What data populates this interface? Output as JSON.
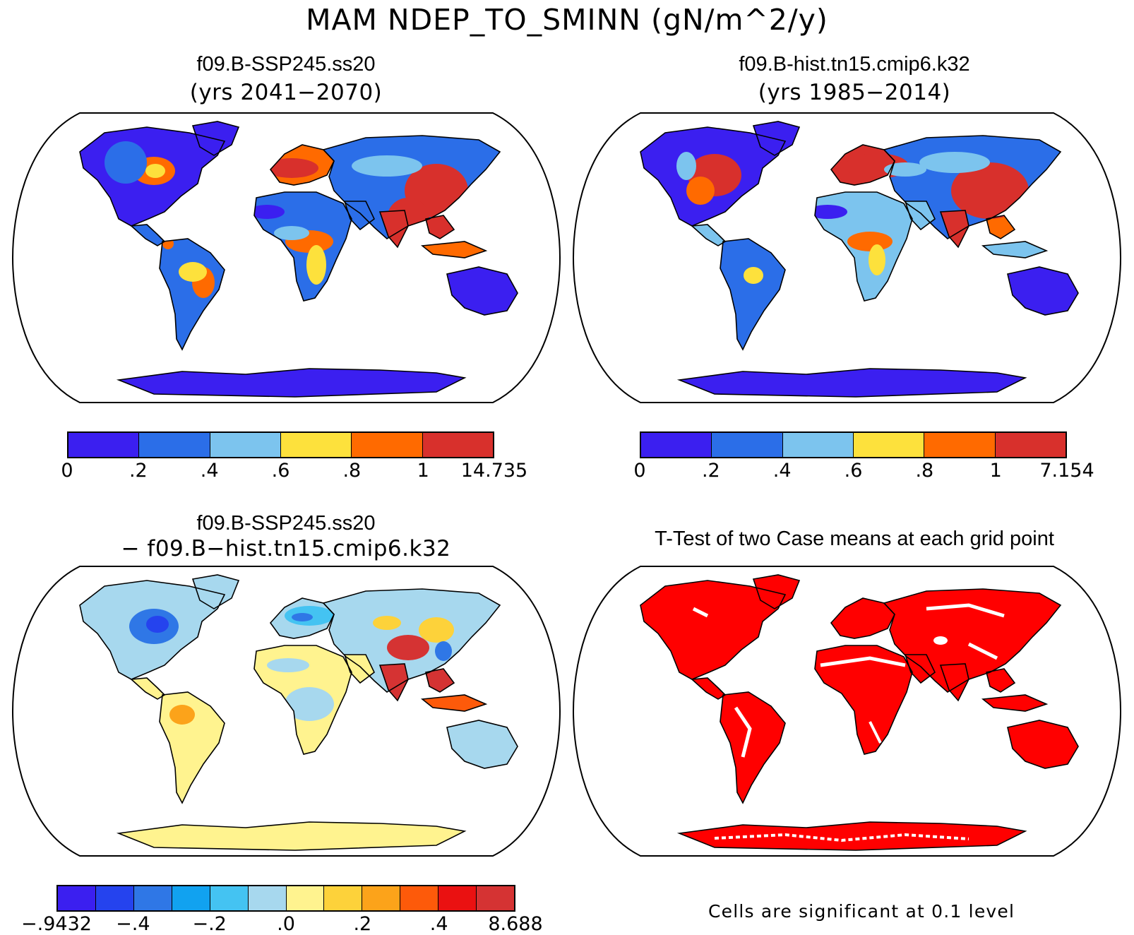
{
  "main_title": "MAM NDEP_TO_SMINN (gN/m^2/y)",
  "panels": {
    "top_left": {
      "title": "f09.B-SSP245.ss20",
      "subtitle": "(yrs 2041−2070)"
    },
    "top_right": {
      "title": "f09.B-hist.tn15.cmip6.k32",
      "subtitle": "(yrs 1985−2014)"
    },
    "bottom_left": {
      "title": "f09.B-SSP245.ss20",
      "subtitle": "− f09.B−hist.tn15.cmip6.k32"
    },
    "bottom_right": {
      "title": "T-Test of two Case means at each grid point",
      "note": "Cells are significant at 0.1 level"
    }
  },
  "colorbars": {
    "top_left": {
      "labels": [
        "0",
        ".2",
        ".4",
        ".6",
        ".8",
        "1",
        "14.735"
      ],
      "colors": [
        "#3b1ff0",
        "#2b6ee8",
        "#7cc4ee",
        "#fde13c",
        "#ff6a00",
        "#d8302c"
      ]
    },
    "top_right": {
      "labels": [
        "0",
        ".2",
        ".4",
        ".6",
        ".8",
        "1",
        "7.154"
      ],
      "colors": [
        "#3b1ff0",
        "#2b6ee8",
        "#7cc4ee",
        "#fde13c",
        "#ff6a00",
        "#d8302c"
      ]
    },
    "bottom_left": {
      "labels": [
        "−.9432",
        "−.4",
        "−.2",
        ".0",
        ".2",
        ".4",
        "8.688"
      ],
      "colors": [
        "#3b1ff0",
        "#2543ee",
        "#2f77e6",
        "#11a2f0",
        "#44c3f2",
        "#a7d8ee",
        "#fff38f",
        "#fdd23a",
        "#fca31a",
        "#fd5a0a",
        "#ea1111",
        "#d53333"
      ]
    }
  },
  "map_colors": {
    "low": "#3b1ff0",
    "lowmid": "#2b6ee8",
    "mid": "#7cc4ee",
    "midhigh": "#fde13c",
    "high": "#ff6a00",
    "top": "#d8302c",
    "diff_neg": "#2f77e6",
    "diff_lightneg": "#a7d8ee",
    "diff_pos": "#fff38f",
    "diff_high": "#d53333",
    "significant": "#ff0000"
  }
}
